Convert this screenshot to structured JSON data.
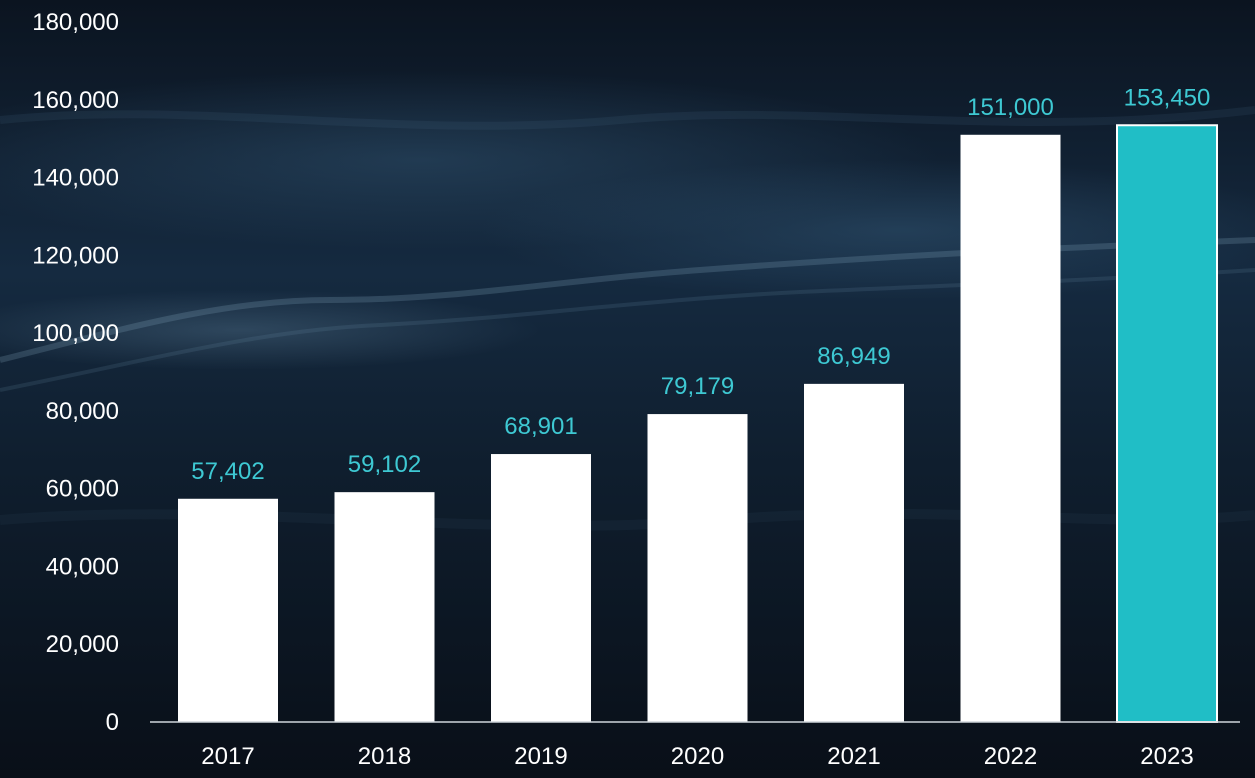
{
  "chart_data": {
    "type": "bar",
    "title": "",
    "xlabel": "",
    "ylabel": "",
    "categories": [
      "2017",
      "2018",
      "2019",
      "2020",
      "2021",
      "2022",
      "2023"
    ],
    "values": [
      57402,
      59102,
      68901,
      79179,
      86949,
      151000,
      153450
    ],
    "data_labels": [
      "57,402",
      "59,102",
      "68,901",
      "79,179",
      "86,949",
      "151,000",
      "153,450"
    ],
    "ylim": [
      0,
      180000
    ],
    "y_ticks": [
      0,
      20000,
      40000,
      60000,
      80000,
      100000,
      120000,
      140000,
      160000,
      180000
    ],
    "y_tick_labels": [
      "0",
      "20,000",
      "40,000",
      "60,000",
      "80,000",
      "100,000",
      "120,000",
      "140,000",
      "160,000",
      "180,000"
    ],
    "grid": false,
    "legend": "none",
    "highlight_index": 6
  },
  "colors": {
    "background_top": "#0b1420",
    "background_mid": "#15283d",
    "background_bottom": "#0a121c",
    "bar": "#ffffff",
    "highlight_bar": "#20bec6",
    "highlight_bar_border": "#ffffff",
    "data_label": "#3ec9d3",
    "axis_text": "#ffffff",
    "axis_line": "#d0d6dc"
  }
}
